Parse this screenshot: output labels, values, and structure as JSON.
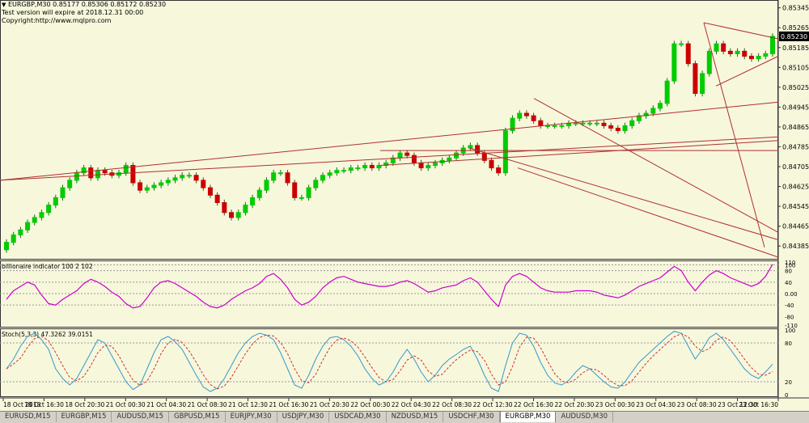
{
  "header": {
    "symbol_line": "EURGBP,M30  0.85177 0.85306 0.85172 0.85230",
    "line2": "Test version will expire at 2018.12.31 00:00",
    "line3": "Copyright:http://www.mqlpro.com"
  },
  "tabs": [
    {
      "label": "EURUSD,M15",
      "active": false
    },
    {
      "label": "EURGBP,M15",
      "active": false
    },
    {
      "label": "AUDUSD,M15",
      "active": false
    },
    {
      "label": "GBPUSD,M15",
      "active": false
    },
    {
      "label": "EURJPY,M30",
      "active": false
    },
    {
      "label": "USDJPY,M30",
      "active": false
    },
    {
      "label": "USDCAD,M30",
      "active": false
    },
    {
      "label": "NZDUSD,M15",
      "active": false
    },
    {
      "label": "USDCHF,M30",
      "active": false
    },
    {
      "label": "EURGBP,M30",
      "active": true
    },
    {
      "label": "AUDUSD,M30",
      "active": false
    }
  ],
  "colors": {
    "background": "#f7f7dc",
    "bull": "#00cc00",
    "bear": "#cc0000",
    "trendline": "#b03030",
    "indicator_main": "#cc00cc",
    "indicator_signal": "#b03050",
    "stoch_main": "#3399cc",
    "stoch_signal": "#cc3333",
    "price_label_bg": "#000000"
  },
  "chart_data": [
    {
      "type": "candlestick",
      "title": "EURGBP,M30",
      "current_price_label": "0.85230",
      "current_price": 0.8523,
      "ylim": [
        0.8434,
        0.8537
      ],
      "y_ticks": [
        "0.85345",
        "0.85265",
        "0.85185",
        "0.85105",
        "0.85025",
        "0.84945",
        "0.84865",
        "0.84785",
        "0.84705",
        "0.84625",
        "0.84545",
        "0.84465",
        "0.84385"
      ],
      "x_ticks": [
        "18 Oct 2013",
        "18 Oct 16:30",
        "18 Oct 20:30",
        "21 Oct 00:30",
        "21 Oct 04:30",
        "21 Oct 08:30",
        "21 Oct 12:30",
        "21 Oct 16:30",
        "21 Oct 20:30",
        "22 Oct 00:30",
        "22 Oct 04:30",
        "22 Oct 08:30",
        "22 Oct 12:30",
        "22 Oct 16:30",
        "22 Oct 20:30",
        "23 Oct 00:30",
        "23 Oct 04:30",
        "23 Oct 08:30",
        "23 Oct 12:30",
        "23 Oct 16:30"
      ],
      "close": [
        0.844,
        0.8443,
        0.8445,
        0.8448,
        0.845,
        0.8452,
        0.8455,
        0.8458,
        0.8462,
        0.8465,
        0.8468,
        0.847,
        0.8466,
        0.8469,
        0.8468,
        0.8467,
        0.8468,
        0.8471,
        0.8464,
        0.8461,
        0.8462,
        0.8463,
        0.8464,
        0.8465,
        0.8466,
        0.8467,
        0.8467,
        0.8465,
        0.8462,
        0.8459,
        0.8456,
        0.8452,
        0.845,
        0.8452,
        0.8455,
        0.8458,
        0.8461,
        0.8465,
        0.8468,
        0.8468,
        0.8464,
        0.8458,
        0.8458,
        0.8462,
        0.8465,
        0.8467,
        0.8468,
        0.8469,
        0.8469,
        0.847,
        0.847,
        0.8471,
        0.847,
        0.8471,
        0.8472,
        0.8474,
        0.8476,
        0.8475,
        0.8472,
        0.847,
        0.8471,
        0.8472,
        0.8473,
        0.8474,
        0.8476,
        0.8478,
        0.8479,
        0.8476,
        0.8473,
        0.847,
        0.8468,
        0.8485,
        0.849,
        0.8492,
        0.8491,
        0.8489,
        0.8487,
        0.8487,
        0.8487,
        0.8487,
        0.8488,
        0.8488,
        0.8488,
        0.8488,
        0.8488,
        0.8487,
        0.8486,
        0.8485,
        0.8487,
        0.8489,
        0.8491,
        0.8492,
        0.8494,
        0.8496,
        0.8505,
        0.852,
        0.852,
        0.8512,
        0.85,
        0.8508,
        0.8517,
        0.852,
        0.8517,
        0.8516,
        0.8517,
        0.8515,
        0.8514,
        0.8515,
        0.8516,
        0.8523
      ]
    },
    {
      "type": "line",
      "title": "billionaire indicator 100 2 102",
      "ylim": [
        -110,
        110
      ],
      "y_ticks": [
        "110",
        "100",
        "80",
        "40",
        "0.00",
        "-40",
        "-80",
        "-110"
      ],
      "series": [
        {
          "values": [
            -20,
            10,
            25,
            40,
            30,
            -5,
            -35,
            -40,
            -20,
            -5,
            10,
            35,
            50,
            40,
            25,
            5,
            -10,
            -35,
            -50,
            -45,
            -15,
            20,
            40,
            45,
            35,
            20,
            5,
            -10,
            -30,
            -45,
            -50,
            -40,
            -20,
            -5,
            10,
            20,
            35,
            60,
            70,
            50,
            20,
            -20,
            -40,
            -30,
            -10,
            20,
            40,
            55,
            60,
            50,
            40,
            35,
            30,
            25,
            25,
            30,
            40,
            45,
            35,
            20,
            5,
            10,
            20,
            25,
            30,
            45,
            55,
            40,
            10,
            -20,
            -45,
            30,
            60,
            70,
            60,
            40,
            20,
            10,
            5,
            5,
            5,
            10,
            10,
            10,
            5,
            -5,
            -10,
            -15,
            -5,
            10,
            25,
            35,
            45,
            55,
            75,
            95,
            80,
            40,
            10,
            40,
            65,
            80,
            70,
            55,
            45,
            35,
            25,
            35,
            60,
            102
          ]
        }
      ]
    },
    {
      "type": "line",
      "title": "Stoch(5,3,3) 47.3262 39.0151",
      "ylim": [
        0,
        100
      ],
      "y_ticks": [
        "100",
        "80",
        "20",
        "0"
      ],
      "series": [
        {
          "values": [
            40,
            55,
            75,
            90,
            95,
            85,
            70,
            40,
            25,
            15,
            25,
            45,
            65,
            85,
            80,
            60,
            40,
            20,
            8,
            15,
            40,
            65,
            85,
            90,
            82,
            70,
            50,
            30,
            12,
            5,
            10,
            25,
            45,
            65,
            80,
            90,
            95,
            92,
            85,
            65,
            40,
            15,
            10,
            30,
            55,
            75,
            88,
            90,
            85,
            75,
            60,
            40,
            25,
            15,
            20,
            35,
            55,
            70,
            55,
            35,
            20,
            30,
            45,
            55,
            62,
            70,
            75,
            55,
            30,
            10,
            5,
            45,
            80,
            95,
            92,
            75,
            50,
            30,
            18,
            15,
            22,
            35,
            45,
            40,
            30,
            20,
            12,
            10,
            20,
            35,
            50,
            60,
            70,
            80,
            90,
            98,
            95,
            75,
            55,
            70,
            88,
            95,
            85,
            70,
            55,
            40,
            30,
            25,
            35,
            47.3
          ]
        }
      ]
    }
  ]
}
